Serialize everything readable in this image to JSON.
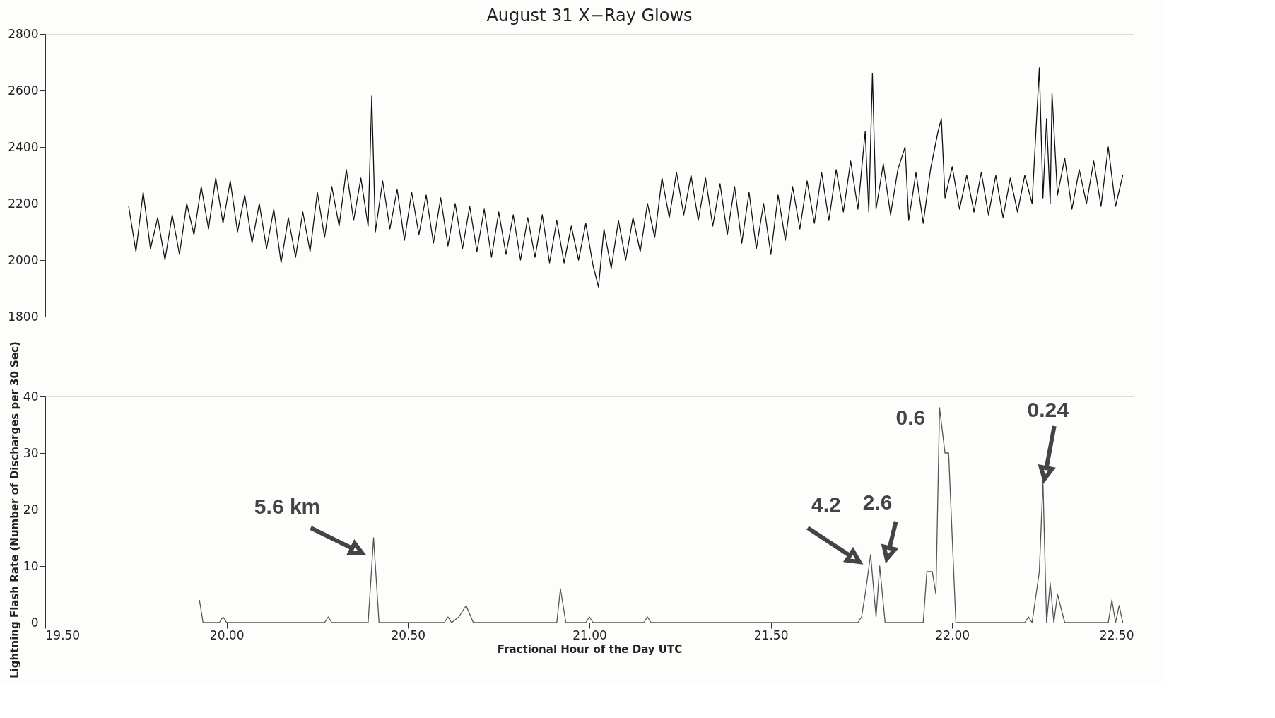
{
  "chart_data": [
    {
      "type": "line",
      "title": "August 31 X−Ray Glows",
      "x": [
        19.73,
        19.75,
        19.77,
        19.79,
        19.81,
        19.83,
        19.85,
        19.87,
        19.89,
        19.91,
        19.93,
        19.95,
        19.97,
        19.99,
        20.01,
        20.03,
        20.05,
        20.07,
        20.09,
        20.11,
        20.13,
        20.15,
        20.17,
        20.19,
        20.21,
        20.23,
        20.25,
        20.27,
        20.29,
        20.31,
        20.33,
        20.35,
        20.37,
        20.39,
        20.4,
        20.41,
        20.43,
        20.45,
        20.47,
        20.49,
        20.51,
        20.53,
        20.55,
        20.57,
        20.59,
        20.61,
        20.63,
        20.65,
        20.67,
        20.69,
        20.71,
        20.73,
        20.75,
        20.77,
        20.79,
        20.81,
        20.83,
        20.85,
        20.87,
        20.89,
        20.91,
        20.93,
        20.95,
        20.97,
        20.99,
        21.01,
        21.025,
        21.04,
        21.06,
        21.08,
        21.1,
        21.12,
        21.14,
        21.16,
        21.18,
        21.2,
        21.22,
        21.24,
        21.26,
        21.28,
        21.3,
        21.32,
        21.34,
        21.36,
        21.38,
        21.4,
        21.42,
        21.44,
        21.46,
        21.48,
        21.5,
        21.52,
        21.54,
        21.56,
        21.58,
        21.6,
        21.62,
        21.64,
        21.66,
        21.68,
        21.7,
        21.72,
        21.74,
        21.76,
        21.77,
        21.78,
        21.79,
        21.81,
        21.83,
        21.85,
        21.87,
        21.88,
        21.9,
        21.92,
        21.94,
        21.96,
        21.97,
        21.98,
        22.0,
        22.02,
        22.04,
        22.06,
        22.08,
        22.1,
        22.12,
        22.14,
        22.16,
        22.18,
        22.2,
        22.22,
        22.24,
        22.25,
        22.26,
        22.27,
        22.275,
        22.29,
        22.31,
        22.33,
        22.35,
        22.37,
        22.39,
        22.41,
        22.43,
        22.45,
        22.47
      ],
      "series": [
        {
          "color": "#111111",
          "values": [
            2190,
            2030,
            2240,
            2040,
            2150,
            2000,
            2160,
            2020,
            2200,
            2090,
            2260,
            2110,
            2290,
            2130,
            2280,
            2100,
            2230,
            2060,
            2200,
            2040,
            2180,
            1990,
            2150,
            2010,
            2170,
            2030,
            2240,
            2080,
            2260,
            2120,
            2320,
            2140,
            2290,
            2120,
            2580,
            2100,
            2280,
            2110,
            2250,
            2070,
            2240,
            2090,
            2230,
            2060,
            2220,
            2050,
            2200,
            2040,
            2190,
            2030,
            2180,
            2010,
            2170,
            2020,
            2160,
            2000,
            2150,
            2010,
            2160,
            1990,
            2140,
            1990,
            2120,
            2000,
            2130,
            1980,
            1905,
            2110,
            1970,
            2140,
            2000,
            2150,
            2030,
            2200,
            2080,
            2290,
            2150,
            2310,
            2160,
            2300,
            2140,
            2290,
            2120,
            2270,
            2090,
            2260,
            2060,
            2240,
            2040,
            2200,
            2020,
            2230,
            2070,
            2260,
            2110,
            2280,
            2130,
            2310,
            2140,
            2320,
            2170,
            2350,
            2180,
            2455,
            2170,
            2660,
            2180,
            2340,
            2160,
            2320,
            2400,
            2140,
            2310,
            2130,
            2320,
            2450,
            2500,
            2220,
            2330,
            2180,
            2300,
            2170,
            2310,
            2160,
            2300,
            2150,
            2290,
            2170,
            2300,
            2200,
            2680,
            2220,
            2500,
            2200,
            2590,
            2230,
            2360,
            2180,
            2320,
            2200,
            2350,
            2190,
            2400,
            2190,
            2300
          ]
        }
      ],
      "xlim": [
        19.5,
        22.5
      ],
      "ylim": [
        1800,
        2800
      ],
      "yticks": [
        1800,
        2000,
        2200,
        2400,
        2600,
        2800
      ],
      "tick_labels": "y",
      "grid": false
    },
    {
      "type": "line",
      "xlabel": "Fractional Hour of the Day UTC",
      "ylabel": "Lightning Flash Rate (Number of Discharges per 30 Sec)",
      "x": [
        19.925,
        19.935,
        19.98,
        19.99,
        20.0,
        20.27,
        20.28,
        20.29,
        20.39,
        20.405,
        20.42,
        20.6,
        20.61,
        20.62,
        20.64,
        20.66,
        20.68,
        20.91,
        20.92,
        20.935,
        20.99,
        21.0,
        21.01,
        21.15,
        21.16,
        21.17,
        21.74,
        21.75,
        21.76,
        21.775,
        21.79,
        21.8,
        21.815,
        21.92,
        21.93,
        21.945,
        21.955,
        21.965,
        21.98,
        21.99,
        22.01,
        22.2,
        22.21,
        22.22,
        22.24,
        22.25,
        22.26,
        22.27,
        22.28,
        22.29,
        22.31,
        22.43,
        22.44,
        22.45,
        22.46,
        22.47
      ],
      "series": [
        {
          "color": "#555555",
          "values": [
            4,
            0,
            0,
            1,
            0,
            0,
            1,
            0,
            0,
            15,
            0,
            0,
            1,
            0,
            1,
            3,
            0,
            0,
            6,
            0,
            0,
            1,
            0,
            0,
            1,
            0,
            0,
            1,
            5,
            12,
            1,
            10,
            0,
            0,
            9,
            9,
            5,
            38,
            30,
            30,
            0,
            0,
            1,
            0,
            9,
            25,
            0,
            7,
            0,
            5,
            0,
            0,
            4,
            0,
            3,
            0
          ]
        }
      ],
      "xlim": [
        19.5,
        22.5
      ],
      "xticks": [
        {
          "value": 19.5,
          "label": "19.50"
        },
        {
          "value": 20.0,
          "label": "20.00"
        },
        {
          "value": 20.5,
          "label": "20.50"
        },
        {
          "value": 21.0,
          "label": "21.00"
        },
        {
          "value": 21.5,
          "label": "21.50"
        },
        {
          "value": 22.0,
          "label": "22.00"
        },
        {
          "value": 22.5,
          "label": "22.50"
        }
      ],
      "ylim": [
        0,
        40
      ],
      "yticks": [
        0,
        10,
        20,
        30,
        40
      ],
      "grid": false,
      "annotations": [
        {
          "text": "5.6 km",
          "x": 20.405,
          "y": 15
        },
        {
          "text": "4.2",
          "x": 21.775,
          "y": 12
        },
        {
          "text": "2.6",
          "x": 21.8,
          "y": 10
        },
        {
          "text": "0.6",
          "x": 21.965,
          "y": 38
        },
        {
          "text": "0.24",
          "x": 22.25,
          "y": 25
        }
      ]
    }
  ]
}
